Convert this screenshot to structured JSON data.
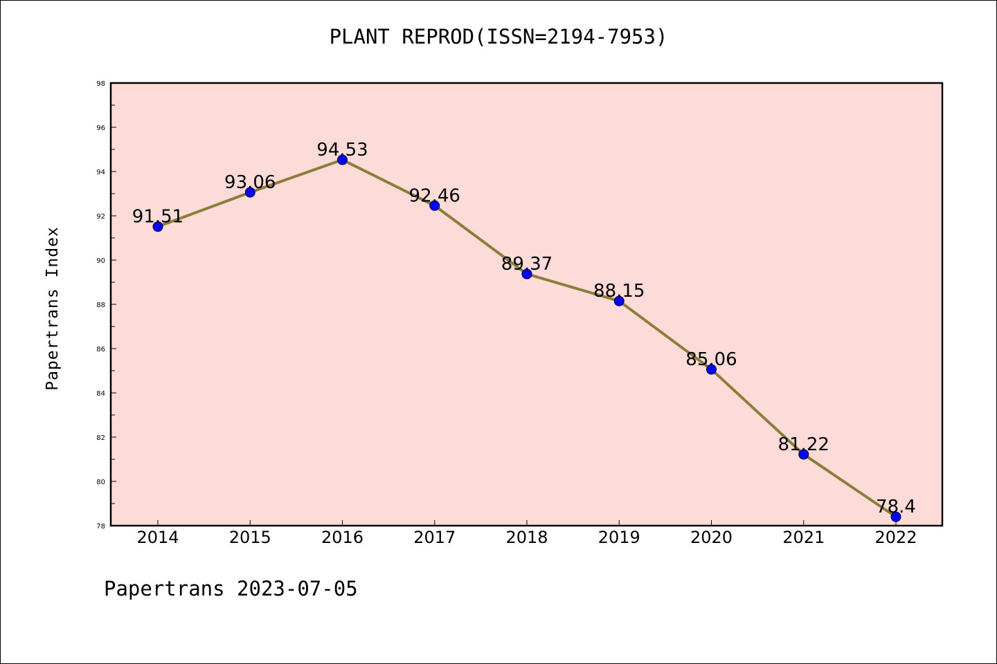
{
  "chart_data": {
    "type": "line",
    "title": "PLANT REPROD(ISSN=2194-7953)",
    "ylabel": "Papertrans Index",
    "xlabel": "",
    "categories": [
      "2014",
      "2015",
      "2016",
      "2017",
      "2018",
      "2019",
      "2020",
      "2021",
      "2022"
    ],
    "values": [
      91.51,
      93.06,
      94.53,
      92.46,
      89.37,
      88.15,
      85.06,
      81.22,
      78.4
    ],
    "value_labels": [
      "91.51",
      "93.06",
      "94.53",
      "92.46",
      "89.37",
      "88.15",
      "85.06",
      "81.22",
      "78.4"
    ],
    "ylim": [
      78,
      98
    ],
    "yticks": [
      "78",
      "80",
      "82",
      "84",
      "86",
      "88",
      "90",
      "92",
      "94",
      "96",
      "98"
    ],
    "grid": false,
    "legend": "none",
    "colors": {
      "line": "#8b7d3a",
      "marker": "#0000ff",
      "plot_background": "#fddbd8"
    }
  },
  "footer": {
    "note": "Papertrans 2023-07-05"
  }
}
